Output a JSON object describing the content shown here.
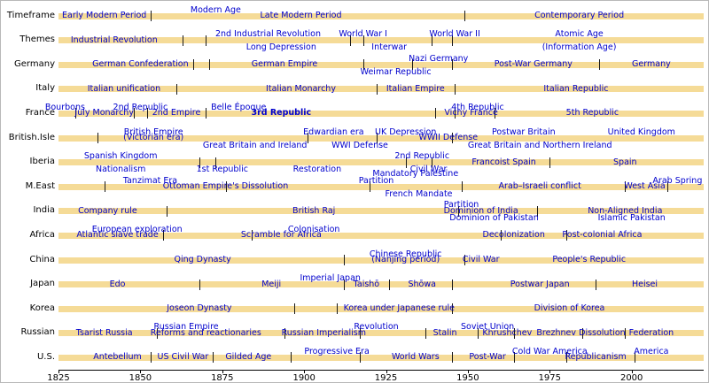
{
  "colors": {
    "bar": "#F5DB97",
    "period_text": "#0000CC",
    "axis": "#000000",
    "background": "#FFFFFF"
  },
  "chart_data": {
    "type": "timeline",
    "title": "",
    "x_axis": {
      "min": 1825,
      "max": 2022,
      "ticks": [
        1825,
        1850,
        1875,
        1900,
        1925,
        1950,
        1975,
        2000
      ]
    },
    "rows": [
      {
        "label": "Timeframe",
        "ticks": [
          1853,
          1949
        ],
        "periods": [
          {
            "text": "Early Modern Period",
            "year": 1839,
            "slot": "on"
          },
          {
            "text": "Modern Age",
            "year": 1873,
            "slot": "above"
          },
          {
            "text": "Late Modern Period",
            "year": 1899,
            "slot": "on"
          },
          {
            "text": "Contemporary Period",
            "year": 1984,
            "slot": "on"
          }
        ]
      },
      {
        "label": "Themes",
        "ticks": [
          1863,
          1870,
          1914,
          1918,
          1939,
          1945
        ],
        "periods": [
          {
            "text": "Industrial Revolution",
            "year": 1842,
            "slot": "on"
          },
          {
            "text": "2nd Industrial Revolution",
            "year": 1889,
            "slot": "above"
          },
          {
            "text": "Long Depression",
            "year": 1893,
            "slot": "below"
          },
          {
            "text": "World War I",
            "year": 1918,
            "slot": "above"
          },
          {
            "text": "Interwar",
            "year": 1926,
            "slot": "below"
          },
          {
            "text": "World War II",
            "year": 1946,
            "slot": "above"
          },
          {
            "text": "Atomic Age",
            "year": 1984,
            "slot": "above"
          },
          {
            "text": "(Information Age)",
            "year": 1984,
            "slot": "below"
          }
        ]
      },
      {
        "label": "Germany",
        "ticks": [
          1866,
          1871,
          1918,
          1933,
          1945,
          1990
        ],
        "periods": [
          {
            "text": "German Confederation",
            "year": 1850,
            "slot": "on"
          },
          {
            "text": "German Empire",
            "year": 1894,
            "slot": "on"
          },
          {
            "text": "Weimar Republic",
            "year": 1928,
            "slot": "below"
          },
          {
            "text": "Nazi Germany",
            "year": 1941,
            "slot": "above"
          },
          {
            "text": "Post-War Germany",
            "year": 1970,
            "slot": "on"
          },
          {
            "text": "Germany",
            "year": 2006,
            "slot": "on"
          }
        ]
      },
      {
        "label": "Italy",
        "ticks": [
          1861,
          1922,
          1946
        ],
        "periods": [
          {
            "text": "Italian unification",
            "year": 1845,
            "slot": "on"
          },
          {
            "text": "Italian Monarchy",
            "year": 1899,
            "slot": "on"
          },
          {
            "text": "Italian Empire",
            "year": 1934,
            "slot": "on"
          },
          {
            "text": "Italian Republic",
            "year": 1983,
            "slot": "on"
          }
        ]
      },
      {
        "label": "France",
        "ticks": [
          1830,
          1848,
          1852,
          1870,
          1940,
          1946,
          1958
        ],
        "periods": [
          {
            "text": "Bourbons",
            "year": 1827,
            "slot": "above"
          },
          {
            "text": "July Monarchy",
            "year": 1839,
            "slot": "on"
          },
          {
            "text": "2nd Republic",
            "year": 1850,
            "slot": "above"
          },
          {
            "text": "2nd Empire",
            "year": 1861,
            "slot": "on"
          },
          {
            "text": "Belle Époque",
            "year": 1880,
            "slot": "above"
          },
          {
            "text": "3rd Republic",
            "year": 1893,
            "slot": "on",
            "bold": true
          },
          {
            "text": "Vichy France",
            "year": 1951,
            "slot": "on"
          },
          {
            "text": "4th Republic",
            "year": 1953,
            "slot": "above"
          },
          {
            "text": "5th Republic",
            "year": 1988,
            "slot": "on"
          }
        ]
      },
      {
        "label": "British.Isle",
        "ticks": [
          1837,
          1901,
          1922,
          1945
        ],
        "periods": [
          {
            "text": "British Empire",
            "year": 1854,
            "slot": "above"
          },
          {
            "text": "(Victorian era)",
            "year": 1854,
            "slot": "on"
          },
          {
            "text": "Great Britain and Ireland",
            "year": 1885,
            "slot": "below"
          },
          {
            "text": "Edwardian era",
            "year": 1909,
            "slot": "above"
          },
          {
            "text": "WWI Defense",
            "year": 1917,
            "slot": "below"
          },
          {
            "text": "UK Depression",
            "year": 1931,
            "slot": "above"
          },
          {
            "text": "WWII Defense",
            "year": 1944,
            "slot": "on"
          },
          {
            "text": "Postwar Britain",
            "year": 1967,
            "slot": "above"
          },
          {
            "text": "Great Britain and Northern Ireland",
            "year": 1972,
            "slot": "below"
          },
          {
            "text": "United Kingdom",
            "year": 2003,
            "slot": "above"
          }
        ]
      },
      {
        "label": "Iberia",
        "ticks": [
          1868,
          1873,
          1931,
          1939,
          1975
        ],
        "periods": [
          {
            "text": "Spanish Kingdom",
            "year": 1844,
            "slot": "above"
          },
          {
            "text": "Nationalism",
            "year": 1844,
            "slot": "below"
          },
          {
            "text": "1st Republic",
            "year": 1875,
            "slot": "below"
          },
          {
            "text": "Restoration",
            "year": 1904,
            "slot": "below"
          },
          {
            "text": "2nd Republic",
            "year": 1936,
            "slot": "above"
          },
          {
            "text": "Civil War",
            "year": 1938,
            "slot": "below"
          },
          {
            "text": "Francoist Spain",
            "year": 1961,
            "slot": "on"
          },
          {
            "text": "Spain",
            "year": 1998,
            "slot": "on"
          }
        ]
      },
      {
        "label": "M.East",
        "ticks": [
          1839,
          1876,
          1920,
          1948,
          1998,
          2011
        ],
        "periods": [
          {
            "text": "Tanzimat Era",
            "year": 1853,
            "slot": "above"
          },
          {
            "text": "Ottoman Empire's Dissolution",
            "year": 1876,
            "slot": "on"
          },
          {
            "text": "Partition",
            "year": 1922,
            "slot": "above"
          },
          {
            "text": "Mandatory Palestine",
            "year": 1934,
            "slot": "above2"
          },
          {
            "text": "French Mandate",
            "year": 1935,
            "slot": "below"
          },
          {
            "text": "Arab–Israeli conflict",
            "year": 1972,
            "slot": "on"
          },
          {
            "text": "West Asia",
            "year": 2004,
            "slot": "on"
          },
          {
            "text": "Arab Spring",
            "year": 2014,
            "slot": "above"
          }
        ]
      },
      {
        "label": "India",
        "ticks": [
          1858,
          1947,
          1971
        ],
        "periods": [
          {
            "text": "Company rule",
            "year": 1840,
            "slot": "on"
          },
          {
            "text": "British Raj",
            "year": 1903,
            "slot": "on"
          },
          {
            "text": "Partition",
            "year": 1948,
            "slot": "above"
          },
          {
            "text": "Dominion of India",
            "year": 1954,
            "slot": "on"
          },
          {
            "text": "Dominion of Pakistan",
            "year": 1958,
            "slot": "below"
          },
          {
            "text": "Non-Aligned India",
            "year": 1998,
            "slot": "on"
          },
          {
            "text": "Islamic Pakistan",
            "year": 2000,
            "slot": "below"
          }
        ]
      },
      {
        "label": "Africa",
        "ticks": [
          1857,
          1884,
          1960,
          1980
        ],
        "periods": [
          {
            "text": "European exploration",
            "year": 1849,
            "slot": "above"
          },
          {
            "text": "Atlantic slave trade",
            "year": 1843,
            "slot": "on"
          },
          {
            "text": "Colonisation",
            "year": 1903,
            "slot": "above"
          },
          {
            "text": "Scramble for Africa",
            "year": 1893,
            "slot": "on"
          },
          {
            "text": "Decolonization",
            "year": 1964,
            "slot": "on"
          },
          {
            "text": "Post-colonial Africa",
            "year": 1991,
            "slot": "on"
          }
        ]
      },
      {
        "label": "China",
        "ticks": [
          1912,
          1949
        ],
        "periods": [
          {
            "text": "Qing Dynasty",
            "year": 1869,
            "slot": "on"
          },
          {
            "text": "Chinese Republic",
            "year": 1931,
            "slot": "above"
          },
          {
            "text": "(Nanjing period)",
            "year": 1931,
            "slot": "on"
          },
          {
            "text": "Civil War",
            "year": 1954,
            "slot": "on"
          },
          {
            "text": "People's Republic",
            "year": 1987,
            "slot": "on"
          }
        ]
      },
      {
        "label": "Japan",
        "ticks": [
          1868,
          1912,
          1926,
          1945,
          1989
        ],
        "periods": [
          {
            "text": "Edo",
            "year": 1843,
            "slot": "on"
          },
          {
            "text": "Meiji",
            "year": 1890,
            "slot": "on"
          },
          {
            "text": "Imperial Japan",
            "year": 1908,
            "slot": "above"
          },
          {
            "text": "Taishō",
            "year": 1919,
            "slot": "on"
          },
          {
            "text": "Shōwa",
            "year": 1936,
            "slot": "on"
          },
          {
            "text": "Postwar Japan",
            "year": 1972,
            "slot": "on"
          },
          {
            "text": "Heisei",
            "year": 2004,
            "slot": "on"
          }
        ]
      },
      {
        "label": "Korea",
        "ticks": [
          1897,
          1910,
          1945
        ],
        "periods": [
          {
            "text": "Joseon Dynasty",
            "year": 1868,
            "slot": "on"
          },
          {
            "text": "Korea under Japanese rule",
            "year": 1929,
            "slot": "on"
          },
          {
            "text": "Division of Korea",
            "year": 1981,
            "slot": "on"
          }
        ]
      },
      {
        "label": "Russian",
        "ticks": [
          1855,
          1894,
          1917,
          1937,
          1953,
          1964,
          1985,
          1998
        ],
        "periods": [
          {
            "text": "Tsarist Russia",
            "year": 1839,
            "slot": "on"
          },
          {
            "text": "Russian Empire",
            "year": 1864,
            "slot": "above"
          },
          {
            "text": "Reforms and reactionaries",
            "year": 1870,
            "slot": "on"
          },
          {
            "text": "Russian Imperialism",
            "year": 1906,
            "slot": "on"
          },
          {
            "text": "Revolution",
            "year": 1922,
            "slot": "above"
          },
          {
            "text": "Stalin",
            "year": 1943,
            "slot": "on"
          },
          {
            "text": "Soviet Union",
            "year": 1956,
            "slot": "above"
          },
          {
            "text": "Khrushchev",
            "year": 1962,
            "slot": "on"
          },
          {
            "text": "Brezhnev",
            "year": 1977,
            "slot": "on"
          },
          {
            "text": "Dissolution",
            "year": 1991,
            "slot": "on"
          },
          {
            "text": "Federation",
            "year": 2006,
            "slot": "on"
          }
        ]
      },
      {
        "label": "U.S.",
        "ticks": [
          1853,
          1872,
          1896,
          1917,
          1945,
          1964,
          1980,
          2001
        ],
        "periods": [
          {
            "text": "Antebellum",
            "year": 1843,
            "slot": "on"
          },
          {
            "text": "US Civil War",
            "year": 1863,
            "slot": "on"
          },
          {
            "text": "Gilded Age",
            "year": 1883,
            "slot": "on"
          },
          {
            "text": "Progressive Era",
            "year": 1910,
            "slot": "above"
          },
          {
            "text": "World Wars",
            "year": 1934,
            "slot": "on"
          },
          {
            "text": "Post-War",
            "year": 1956,
            "slot": "on"
          },
          {
            "text": "Cold War America",
            "year": 1975,
            "slot": "above"
          },
          {
            "text": "Republicanism",
            "year": 1989,
            "slot": "on"
          },
          {
            "text": "America",
            "year": 2006,
            "slot": "above"
          }
        ]
      }
    ]
  }
}
